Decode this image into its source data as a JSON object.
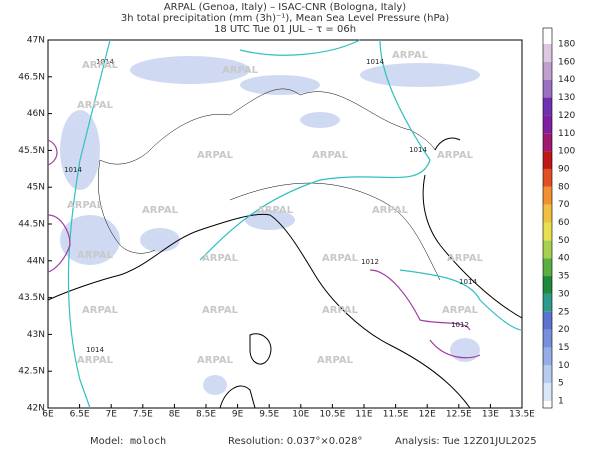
{
  "header": {
    "line1": "ARPAL (Genoa, Italy)  –  ISAC-CNR (Bologna, Italy)",
    "line2": "3h total precipitation (mm (3h)⁻¹), Mean Sea Level Pressure (hPa)",
    "line3": "18 UTC Tue 01 JUL  –  τ = 06h"
  },
  "map": {
    "lat_labels": [
      "47N",
      "46.5N",
      "46N",
      "45.5N",
      "45N",
      "44.5N",
      "44N",
      "43.5N",
      "43N",
      "42.5N",
      "42N"
    ],
    "lon_labels": [
      "6E",
      "6.5E",
      "7E",
      "7.5E",
      "8E",
      "8.5E",
      "9E",
      "9.5E",
      "10E",
      "10.5E",
      "11E",
      "11.5E",
      "12E",
      "12.5E",
      "13E",
      "13.5E"
    ],
    "isobar_labels": [
      "1014",
      "1014",
      "1014",
      "1014",
      "1012",
      "1012",
      "1014",
      "1014"
    ],
    "watermark": "ARPAL"
  },
  "colorbar": {
    "levels": [
      1,
      5,
      10,
      15,
      20,
      25,
      30,
      35,
      40,
      50,
      60,
      70,
      80,
      90,
      100,
      110,
      120,
      130,
      140,
      160,
      180
    ],
    "colors": [
      "#d8e8f8",
      "#b8ccf0",
      "#96aee8",
      "#7890dc",
      "#5a74d0",
      "#2e9a8c",
      "#1e8a3c",
      "#58b040",
      "#a8d050",
      "#e8e050",
      "#f0c040",
      "#f09030",
      "#e05020",
      "#c01818",
      "#a01870",
      "#8020a0",
      "#7030b0",
      "#9a70c0",
      "#c0a0d0",
      "#dcc8e0",
      "#ffffff"
    ]
  },
  "footer": {
    "model_label": "Model:",
    "model": "moloch",
    "resolution": "Resolution: 0.037°×0.028°",
    "analysis": "Analysis: Tue 12Z01JUL2025"
  }
}
